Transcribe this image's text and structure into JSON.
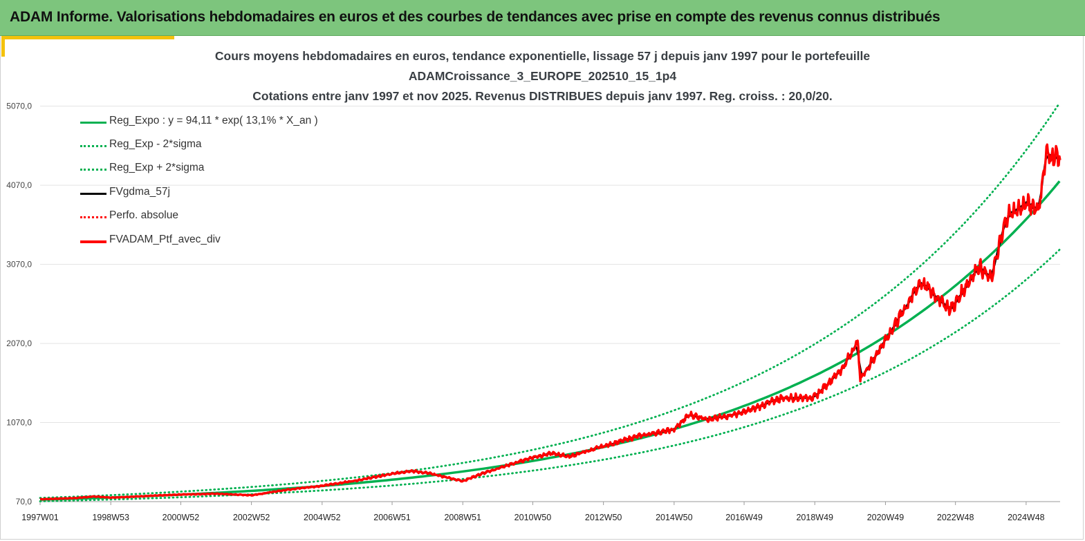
{
  "banner": {
    "title": "ADAM Informe. Valorisations hebdomadaires en euros et des courbes de tendances avec prise en compte des revenus connus distribués"
  },
  "colors": {
    "banner_bg": "#7dc57d",
    "accent": "#f4c20d",
    "trend": "#00b050",
    "smoothed": "#000000",
    "portfolio": "#ff0000"
  },
  "chart_data": {
    "type": "line",
    "title_lines": [
      "Cours moyens hebdomadaires  en euros, tendance exponentielle, lissage 57 j depuis janv 1997 pour le portefeuille",
      "ADAMCroissance_3_EUROPE_202510_15_1p4",
      "Cotations entre janv 1997 et nov 2025. Revenus DISTRIBUES depuis janv 1997. Reg. croiss. : 20,0/20."
    ],
    "x_tick_labels": [
      "1997W01",
      "1998W53",
      "2000W52",
      "2002W52",
      "2004W52",
      "2006W51",
      "2008W51",
      "2010W50",
      "2012W50",
      "2014W50",
      "2016W49",
      "2018W49",
      "2020W49",
      "2022W48",
      "2024W48"
    ],
    "x_range": [
      "1997W01",
      "2025W45"
    ],
    "y_tick_labels": [
      "70,0",
      "1070,0",
      "2070,0",
      "3070,0",
      "4070,0",
      "5070,0"
    ],
    "ylim": [
      70,
      5670
    ],
    "grid": "horizontal",
    "legend_position": "top-left",
    "legend": [
      {
        "label": "Reg_Expo : y = 94,11 * exp( 13,1% *  X_an )",
        "color": "#00b050",
        "style": "solid"
      },
      {
        "label": "Reg_Exp - 2*sigma",
        "color": "#00b050",
        "style": "dotted"
      },
      {
        "label": "Reg_Exp + 2*sigma",
        "color": "#00b050",
        "style": "dotted"
      },
      {
        "label": "FVgdma_57j",
        "color": "#000000",
        "style": "solid"
      },
      {
        "label": "Perfo. absolue",
        "color": "#ff0000",
        "style": "dotted"
      },
      {
        "label": "FVADAM_Ptf_avec_div",
        "color": "#ff0000",
        "style": "solid"
      }
    ],
    "regression": {
      "a": 94.11,
      "rate": 0.131,
      "years": 28.85
    },
    "band_factors": {
      "upper": 1.24,
      "lower": 0.79
    },
    "portfolio_points": [
      {
        "x": "1997W01",
        "y": 100
      },
      {
        "x": "1997W52",
        "y": 115
      },
      {
        "x": "1998W30",
        "y": 135
      },
      {
        "x": "1998W53",
        "y": 120
      },
      {
        "x": "1999W52",
        "y": 140
      },
      {
        "x": "2000W52",
        "y": 160
      },
      {
        "x": "2001W52",
        "y": 170
      },
      {
        "x": "2002W52",
        "y": 150
      },
      {
        "x": "2003W52",
        "y": 220
      },
      {
        "x": "2004W52",
        "y": 270
      },
      {
        "x": "2005W52",
        "y": 340
      },
      {
        "x": "2006W51",
        "y": 420
      },
      {
        "x": "2007W26",
        "y": 460
      },
      {
        "x": "2007W52",
        "y": 430
      },
      {
        "x": "2008W51",
        "y": 330
      },
      {
        "x": "2009W26",
        "y": 420
      },
      {
        "x": "2010W50",
        "y": 630
      },
      {
        "x": "2011W26",
        "y": 680
      },
      {
        "x": "2011W52",
        "y": 640
      },
      {
        "x": "2012W50",
        "y": 770
      },
      {
        "x": "2013W50",
        "y": 900
      },
      {
        "x": "2014W50",
        "y": 980
      },
      {
        "x": "2015W20",
        "y": 1170
      },
      {
        "x": "2015W52",
        "y": 1110
      },
      {
        "x": "2016W49",
        "y": 1200
      },
      {
        "x": "2017W52",
        "y": 1380
      },
      {
        "x": "2018W49",
        "y": 1390
      },
      {
        "x": "2019W40",
        "y": 1780
      },
      {
        "x": "2020W08",
        "y": 2100
      },
      {
        "x": "2020W12",
        "y": 1620
      },
      {
        "x": "2020W49",
        "y": 2110
      },
      {
        "x": "2021W49",
        "y": 2850
      },
      {
        "x": "2022W40",
        "y": 2500
      },
      {
        "x": "2022W48",
        "y": 2580
      },
      {
        "x": "2023W30",
        "y": 3050
      },
      {
        "x": "2023W48",
        "y": 2880
      },
      {
        "x": "2024W20",
        "y": 3680
      },
      {
        "x": "2024W48",
        "y": 3830
      },
      {
        "x": "2025W15",
        "y": 3780
      },
      {
        "x": "2025W25",
        "y": 4450
      },
      {
        "x": "2025W45",
        "y": 4430
      }
    ]
  }
}
